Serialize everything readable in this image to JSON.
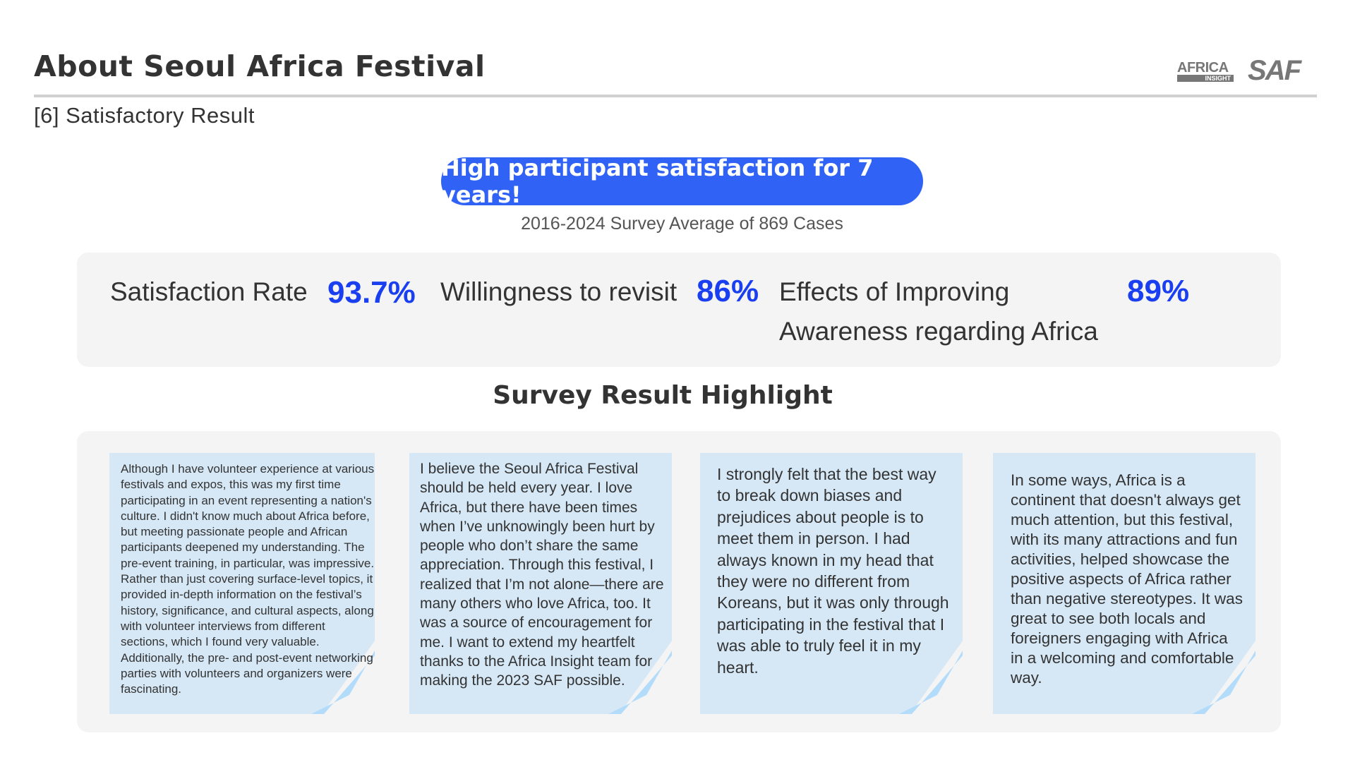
{
  "header": {
    "title": "About Seoul Africa Festival",
    "subtitle": "[6] Satisfactory Result",
    "logos": {
      "africa_insight": {
        "top": "AFRICA",
        "bottom": "INSIGHT"
      },
      "saf": "SAF"
    }
  },
  "banner": {
    "headline": "High participant satisfaction for 7 years!",
    "caption": "2016-2024 Survey Average of 869 Cases"
  },
  "stats": [
    {
      "label": "Satisfaction Rate",
      "value": "93.7%"
    },
    {
      "label": "Willingness to revisit",
      "value": "86%"
    },
    {
      "label": "Effects of Improving Awareness regarding Africa",
      "value": "89%"
    }
  ],
  "highlight": {
    "title": "Survey Result Highlight",
    "notes": [
      "Although I have volunteer experience at various festivals and expos, this was my first time participating in an event representing a nation's culture. I didn't know much about Africa before, but meeting passionate people and African participants deepened my understanding. The pre-event training, in particular, was impressive. Rather than just covering surface-level topics, it provided in-depth information on the festival’s history, significance, and cultural aspects, along with volunteer interviews from different sections, which I found very valuable. Additionally, the pre- and post-event networking parties with volunteers and organizers were fascinating.",
      "I believe the Seoul Africa Festival should be held every year. I love Africa, but there have been times when I’ve unknowingly been hurt by people who don’t share the same appreciation. Through this festival, I realized that I’m not alone—there are many others who love Africa, too. It was a source of encouragement for me. I want to extend my heartfelt thanks to the Africa Insight team for making the 2023 SAF possible.",
      "I strongly felt that the best way to break down biases and prejudices about people is to meet them in person. I had always known in my head that they were no different from Koreans, but it was only through participating in the festival that I was able to truly feel it in my heart.",
      "In some ways, Africa is a continent that doesn't always get much attention, but this festival, with its many attractions and fun activities, helped showcase the positive aspects of Africa rather than negative stereotypes. It was great to see both locals and foreigners engaging with Africa in a welcoming and comfortable way."
    ]
  },
  "colors": {
    "accent": "#2f62f5",
    "value": "#1a3ff0",
    "note": "#d6e8f6"
  }
}
